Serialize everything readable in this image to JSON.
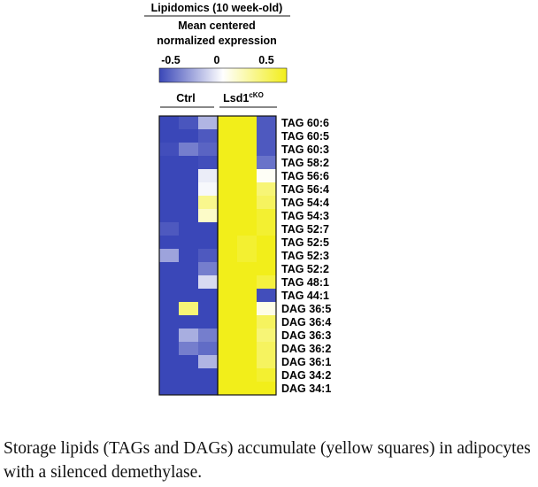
{
  "chart_data": {
    "type": "heatmap",
    "title": "Lipidomics (10 week-old)",
    "legend_title": [
      "Mean centered",
      "normalized expression"
    ],
    "color_scale": {
      "min": -0.5,
      "mid": 0,
      "max": 0.5,
      "tick_labels": [
        "-0.5",
        "0",
        "0.5"
      ],
      "colors": [
        "#3a47b8",
        "#ffffff",
        "#f2ee1a"
      ]
    },
    "groups": [
      {
        "label": "Ctrl",
        "columns": 3
      },
      {
        "label": "Lsd1",
        "superscript": "cKO",
        "columns": 3
      }
    ],
    "rows": [
      "TAG 60:6",
      "TAG 60:5",
      "TAG 60:3",
      "TAG 58:2",
      "TAG 56:6",
      "TAG 56:4",
      "TAG 54:4",
      "TAG 54:3",
      "TAG 52:7",
      "TAG 52:5",
      "TAG 52:3",
      "TAG 52:2",
      "TAG 48:1",
      "TAG 44:1",
      "DAG 36:5",
      "DAG 36:4",
      "DAG 36:3",
      "DAG 36:2",
      "DAG 36:1",
      "DAG 34:2",
      "DAG 34:1"
    ],
    "values": [
      [
        -0.5,
        -0.46,
        -0.2,
        0.5,
        0.5,
        -0.45
      ],
      [
        -0.5,
        -0.5,
        -0.45,
        0.5,
        0.5,
        -0.45
      ],
      [
        -0.48,
        -0.35,
        -0.42,
        0.5,
        0.5,
        -0.45
      ],
      [
        -0.5,
        -0.5,
        -0.48,
        0.5,
        0.5,
        -0.38
      ],
      [
        -0.5,
        -0.5,
        -0.05,
        0.5,
        0.5,
        0.02
      ],
      [
        -0.5,
        -0.5,
        -0.02,
        0.5,
        0.5,
        0.3
      ],
      [
        -0.5,
        -0.5,
        0.25,
        0.5,
        0.5,
        0.35
      ],
      [
        -0.5,
        -0.5,
        0.12,
        0.5,
        0.5,
        0.45
      ],
      [
        -0.45,
        -0.5,
        -0.5,
        0.5,
        0.5,
        0.45
      ],
      [
        -0.5,
        -0.5,
        -0.5,
        0.5,
        0.45,
        0.5
      ],
      [
        -0.25,
        -0.5,
        -0.45,
        0.5,
        0.45,
        0.5
      ],
      [
        -0.5,
        -0.5,
        -0.35,
        0.5,
        0.5,
        0.5
      ],
      [
        -0.5,
        -0.5,
        -0.1,
        0.5,
        0.5,
        0.42
      ],
      [
        -0.5,
        -0.5,
        -0.5,
        0.5,
        0.5,
        -0.48
      ],
      [
        -0.5,
        0.3,
        -0.5,
        0.5,
        0.5,
        0.05
      ],
      [
        -0.5,
        -0.5,
        -0.5,
        0.5,
        0.5,
        0.35
      ],
      [
        -0.5,
        -0.22,
        -0.35,
        0.5,
        0.5,
        0.3
      ],
      [
        -0.5,
        -0.35,
        -0.4,
        0.5,
        0.5,
        0.35
      ],
      [
        -0.5,
        -0.5,
        -0.2,
        0.5,
        0.5,
        0.35
      ],
      [
        -0.5,
        -0.5,
        -0.5,
        0.5,
        0.5,
        0.45
      ],
      [
        -0.5,
        -0.5,
        -0.5,
        0.5,
        0.5,
        0.5
      ]
    ]
  },
  "caption": "Storage lipids (TAGs and DAGs) accumulate (yellow squares) in adipocytes with a silenced demethylase."
}
